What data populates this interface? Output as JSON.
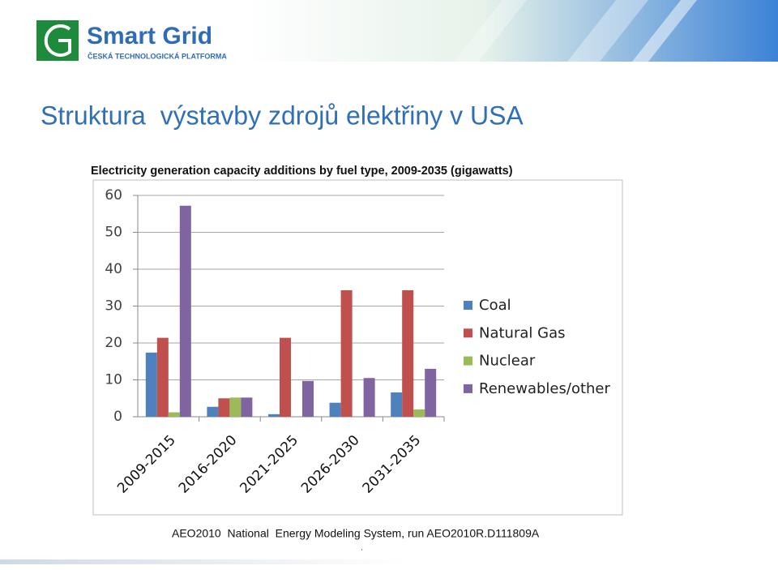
{
  "header": {
    "logo_title": "Smart Grid",
    "logo_subtitle": "ČESKÁ TECHNOLOGICKÁ PLATFORMA"
  },
  "slide_title": "Struktura  výstavby zdrojů elektřiny v USA",
  "chart_data": {
    "type": "bar",
    "title": "Electricity generation capacity additions by fuel type, 2009-2035 (gigawatts)",
    "categories": [
      "2009-2015",
      "2016-2020",
      "2021-2025",
      "2026-2030",
      "2031-2035"
    ],
    "series": [
      {
        "name": "Coal",
        "color": "#4f81bd",
        "values": [
          17.4,
          2.7,
          0.7,
          3.8,
          6.6
        ]
      },
      {
        "name": "Natural Gas",
        "color": "#c0504d",
        "values": [
          21.4,
          5.0,
          21.4,
          34.3,
          34.3
        ]
      },
      {
        "name": "Nuclear",
        "color": "#9bbb59",
        "values": [
          1.2,
          5.2,
          0,
          0,
          2.0
        ]
      },
      {
        "name": "Renewables/other",
        "color": "#8064a2",
        "values": [
          57.2,
          5.2,
          9.7,
          10.5,
          13.0
        ]
      }
    ],
    "ylim": [
      0,
      60
    ],
    "yticks": [
      0,
      10,
      20,
      30,
      40,
      50,
      60
    ],
    "grid": true,
    "legend": "right"
  },
  "footer": {
    "source": "AEO2010  National  Energy Modeling System, run AEO2010R.D111809A",
    "note": "."
  }
}
